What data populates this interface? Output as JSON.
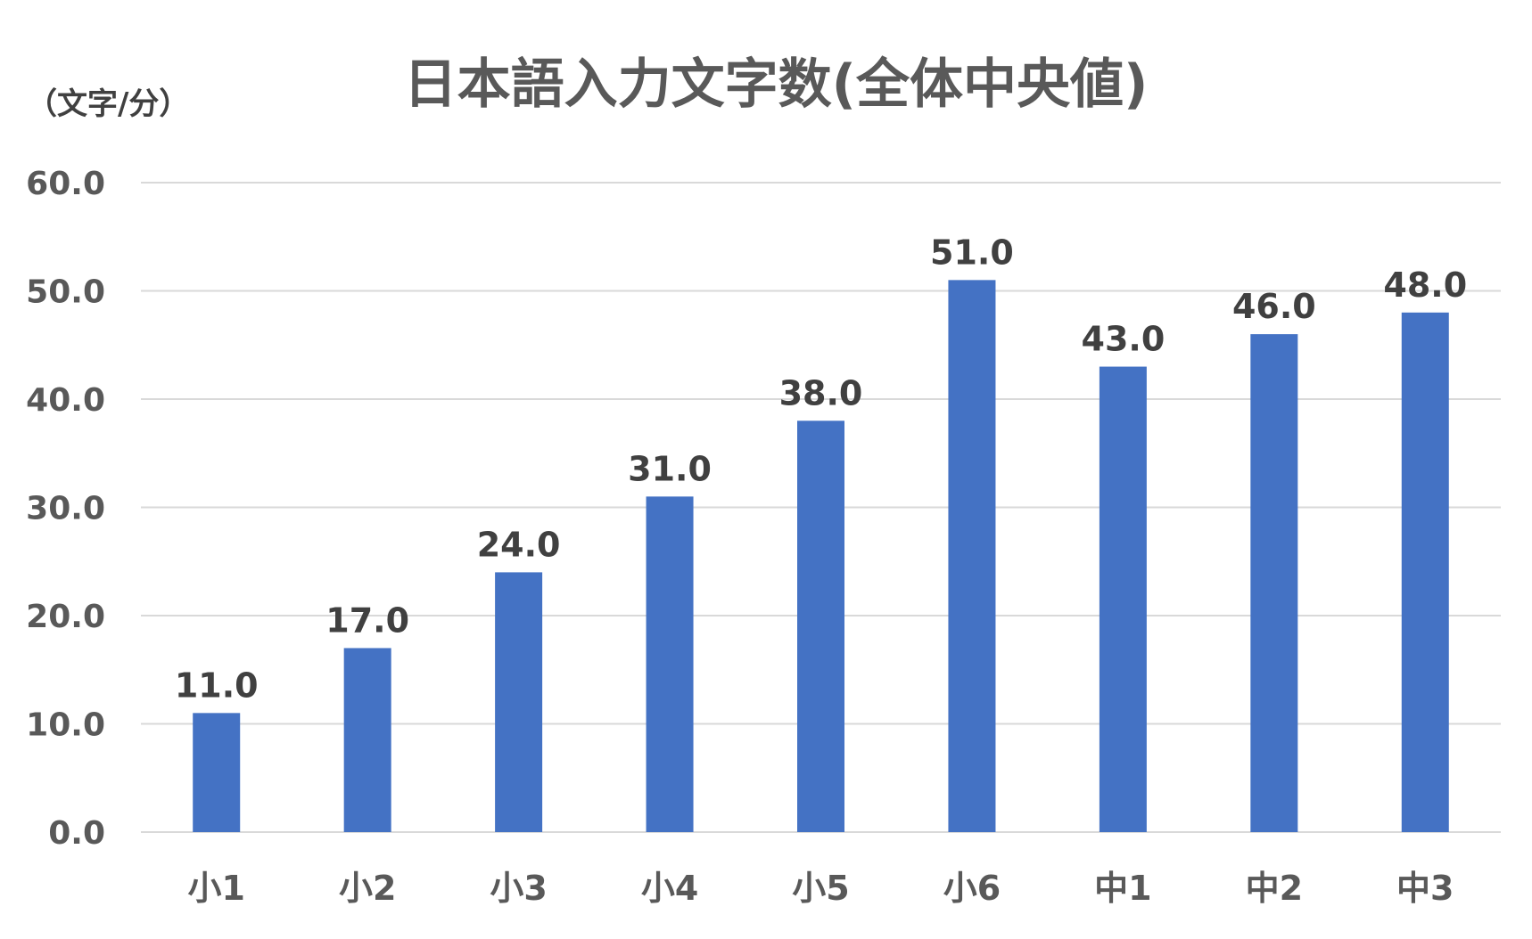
{
  "chart_data": {
    "type": "bar",
    "title": "日本語入力文字数(全体中央値)",
    "unit_label": "（文字/分）",
    "categories": [
      "小1",
      "小2",
      "小3",
      "小4",
      "小5",
      "小6",
      "中1",
      "中2",
      "中3"
    ],
    "values": [
      11.0,
      17.0,
      24.0,
      31.0,
      38.0,
      51.0,
      43.0,
      46.0,
      48.0
    ],
    "data_labels": [
      "11.0",
      "17.0",
      "24.0",
      "31.0",
      "38.0",
      "51.0",
      "43.0",
      "46.0",
      "48.0"
    ],
    "ylim": [
      0,
      60
    ],
    "yticks": [
      "0.0",
      "10.0",
      "20.0",
      "30.0",
      "40.0",
      "50.0",
      "60.0"
    ],
    "grid": true,
    "legend": "none",
    "bar_color": "#4472C4"
  }
}
